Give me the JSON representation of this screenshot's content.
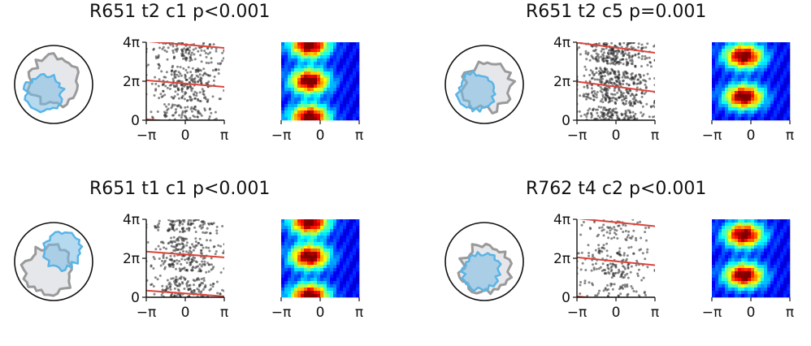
{
  "chart_data": [
    {
      "type": "scatter",
      "title": "R651 t2 c1 p<0.001",
      "xticks": [
        "−π",
        "0",
        "π"
      ],
      "yticks": [
        "0",
        "2π",
        "4π"
      ],
      "xlim": [
        -3.1416,
        3.1416
      ],
      "ylim": [
        0,
        12.566
      ],
      "heatmap_xticks": [
        "−π",
        "0",
        "π"
      ],
      "regression_slope": -0.17,
      "regression_intercept": 5.9,
      "heatmap_peak_y_fraction": [
        0.04,
        0.5,
        0.96
      ],
      "heatmap_peak_x": 0.05,
      "seed": 11,
      "density": 420,
      "colors": {
        "field_gray": "#9a9a9a",
        "field_blue": "#5ab4e5",
        "fit_line": "#d9453b"
      }
    },
    {
      "type": "scatter",
      "title": "R651 t2 c5 p=0.001",
      "xticks": [
        "−π",
        "0",
        "π"
      ],
      "yticks": [
        "0",
        "2π",
        "4π"
      ],
      "xlim": [
        -3.1416,
        3.1416
      ],
      "ylim": [
        0,
        12.566
      ],
      "heatmap_xticks": [
        "−π",
        "0",
        "π"
      ],
      "regression_slope": -0.26,
      "regression_intercept": 5.4,
      "heatmap_peak_y_fraction": [
        0.18,
        0.7
      ],
      "heatmap_peak_x": 0.2,
      "seed": 23,
      "density": 700,
      "colors": {
        "field_gray": "#9a9a9a",
        "field_blue": "#5ab4e5",
        "fit_line": "#d9453b"
      }
    },
    {
      "type": "scatter",
      "title": "R651 t1 c1 p<0.001",
      "xticks": [
        "−π",
        "0",
        "π"
      ],
      "yticks": [
        "0",
        "2π",
        "4π"
      ],
      "xlim": [
        -3.1416,
        3.1416
      ],
      "ylim": [
        0,
        12.566
      ],
      "heatmap_xticks": [
        "−π",
        "0",
        "π"
      ],
      "regression_slope": -0.15,
      "regression_intercept": 6.9,
      "heatmap_peak_y_fraction": [
        0.04,
        0.48,
        0.98
      ],
      "heatmap_peak_x": 0.05,
      "seed": 37,
      "density": 460,
      "colors": {
        "field_gray": "#9a9a9a",
        "field_blue": "#5ab4e5",
        "fit_line": "#d9453b"
      }
    },
    {
      "type": "scatter",
      "title": "R762 t4 c2 p<0.001",
      "xticks": [
        "−π",
        "0",
        "π"
      ],
      "yticks": [
        "0",
        "2π",
        "4π"
      ],
      "xlim": [
        -3.1416,
        3.1416
      ],
      "ylim": [
        0,
        12.566
      ],
      "heatmap_xticks": [
        "−π",
        "0",
        "π"
      ],
      "regression_slope": -0.2,
      "regression_intercept": 5.8,
      "heatmap_peak_y_fraction": [
        0.2,
        0.72
      ],
      "heatmap_peak_x": 0.2,
      "seed": 53,
      "density": 260,
      "colors": {
        "field_gray": "#9a9a9a",
        "field_blue": "#5ab4e5",
        "fit_line": "#d9453b"
      }
    }
  ]
}
